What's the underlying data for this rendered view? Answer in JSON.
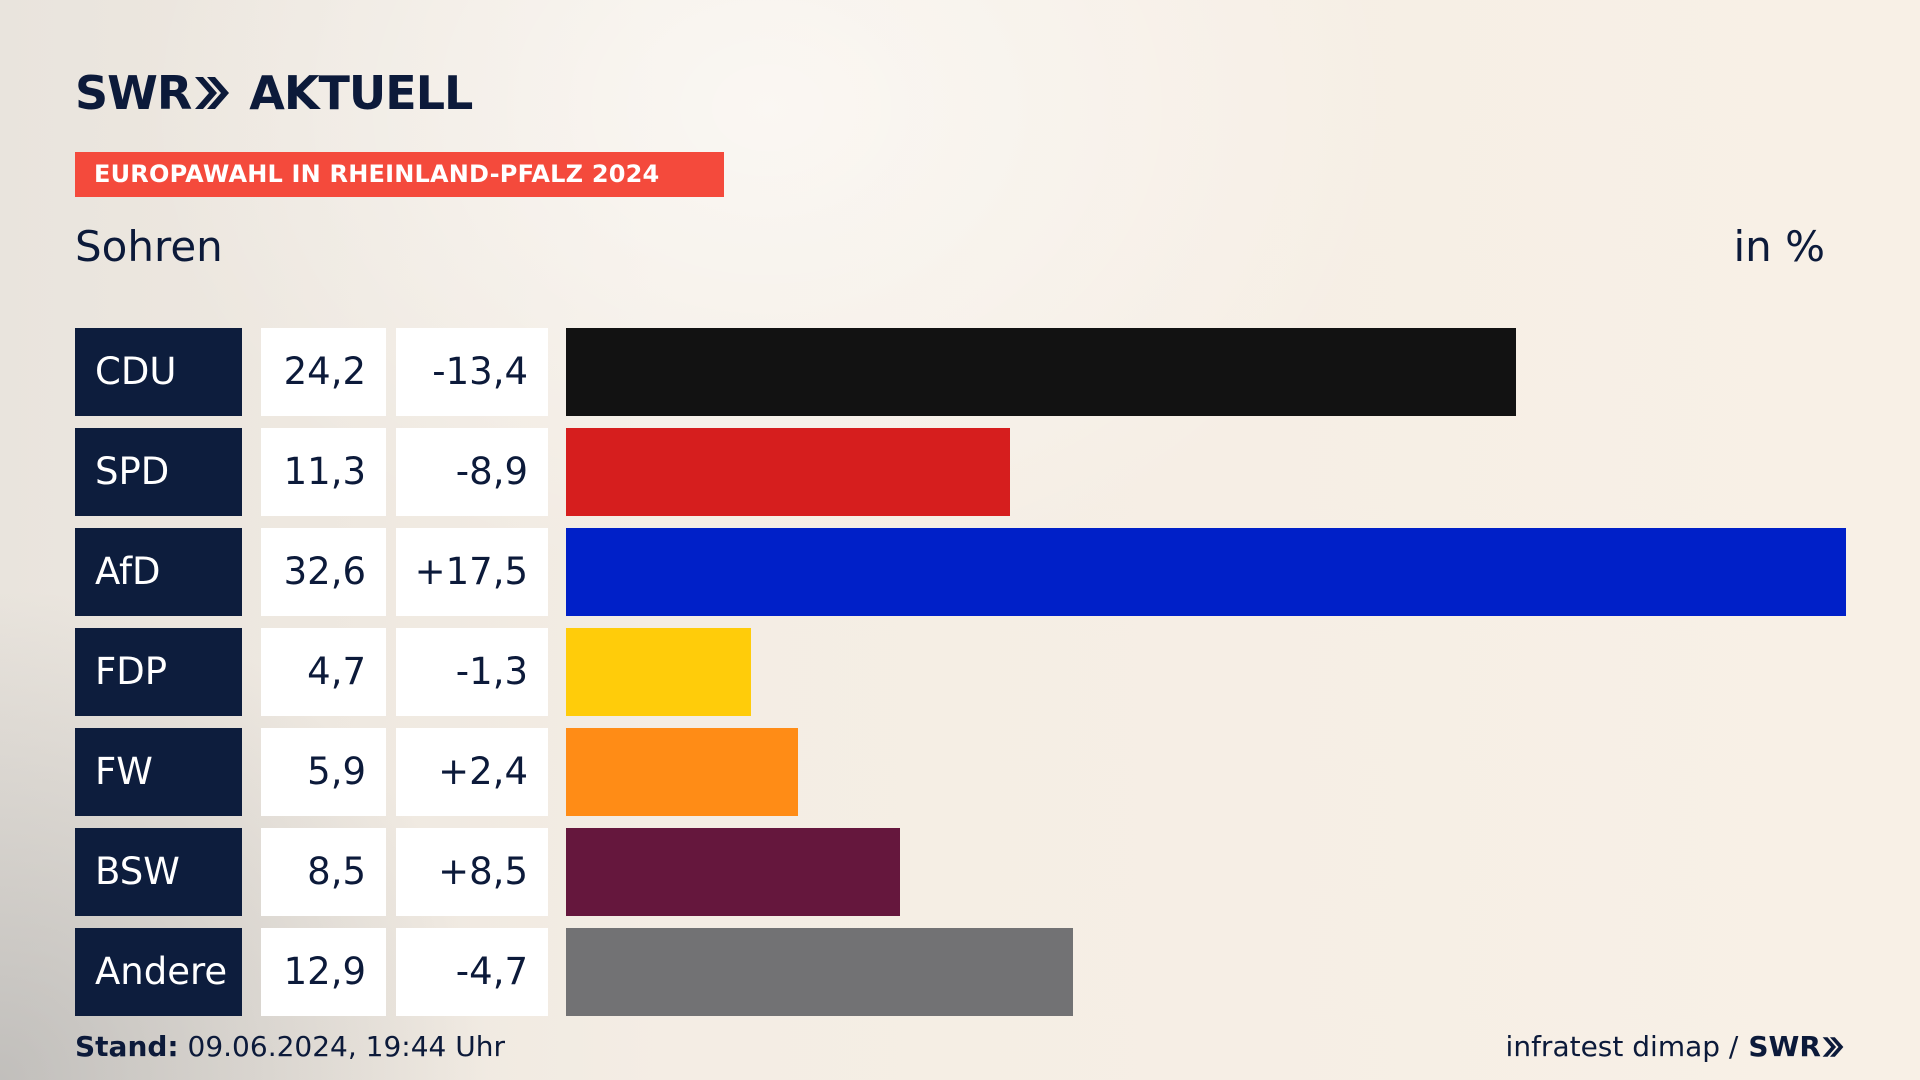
{
  "header": {
    "logo_swr": "SWR",
    "logo_aktuell": "AKTUELL",
    "banner": "EUROPAWAHL IN RHEINLAND-PFALZ 2024",
    "place": "Sohren",
    "unit": "in %"
  },
  "footer": {
    "stand_label": "Stand:",
    "stand_value": "09.06.2024, 19:44 Uhr",
    "source": "infratest dimap /",
    "source_logo": "SWR"
  },
  "colors": {
    "navy": "#0d1d3d",
    "banner": "#f44a3c"
  },
  "chart_data": {
    "type": "bar",
    "title": "EUROPAWAHL IN RHEINLAND-PFALZ 2024",
    "subtitle": "Sohren",
    "ylabel": "in %",
    "xlim": [
      0,
      32.6
    ],
    "categories": [
      "CDU",
      "SPD",
      "AfD",
      "FDP",
      "FW",
      "BSW",
      "Andere"
    ],
    "values": [
      24.2,
      11.3,
      32.6,
      4.7,
      5.9,
      8.5,
      12.9
    ],
    "values_label": [
      "24,2",
      "11,3",
      "32,6",
      "4,7",
      "5,9",
      "8,5",
      "12,9"
    ],
    "diffs_label": [
      "-13,4",
      "-8,9",
      "+17,5",
      "-1,3",
      "+2,4",
      "+8,5",
      "-4,7"
    ],
    "colors": [
      "#121212",
      "#d61e1e",
      "#0020c8",
      "#ffcc0a",
      "#ff8c16",
      "#65173d",
      "#727274"
    ]
  }
}
